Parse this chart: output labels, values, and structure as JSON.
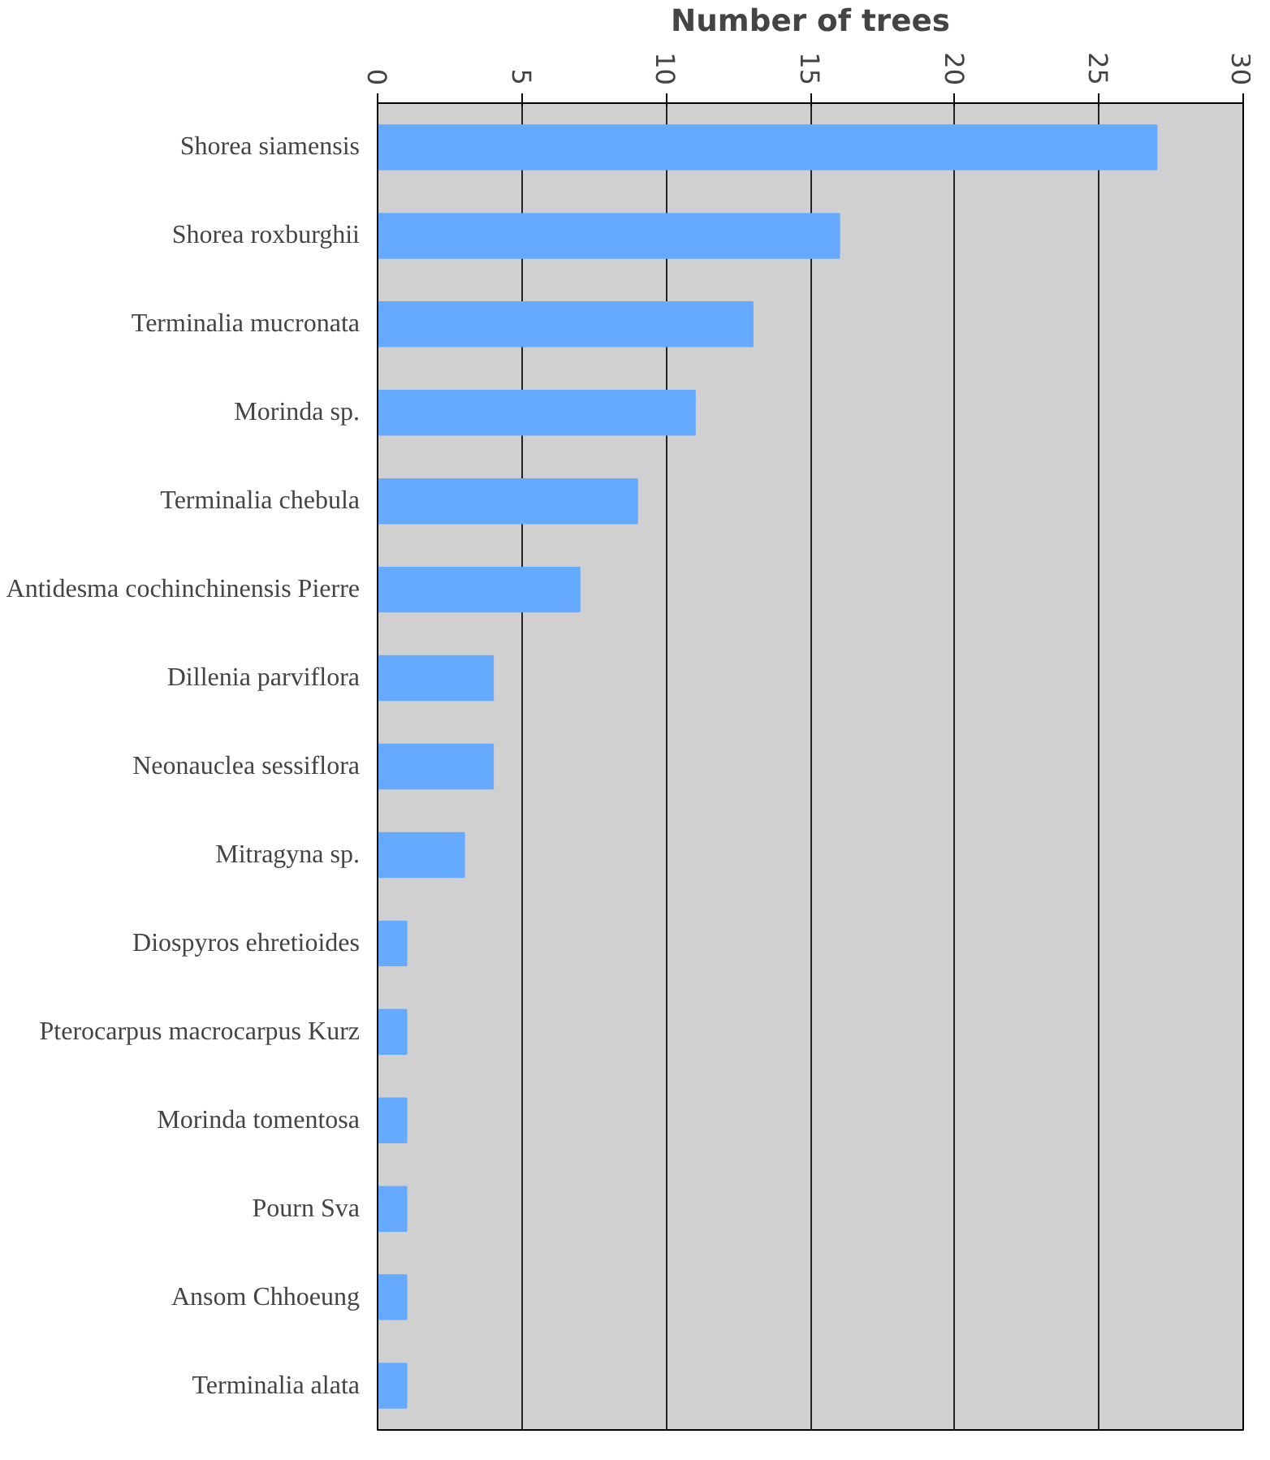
{
  "chart_data": {
    "type": "bar",
    "orientation": "horizontal",
    "xlabel": "Number of trees",
    "categories": [
      "Shorea siamensis",
      "Shorea roxburghii",
      "Terminalia mucronata",
      "Morinda sp.",
      "Terminalia chebula",
      "Antidesma cochinchinensis Pierre",
      "Dillenia parviflora",
      "Neonauclea sessiflora",
      "Mitragyna sp.",
      "Diospyros ehretioides",
      "Pterocarpus macrocarpus Kurz",
      "Morinda tomentosa",
      "Pourn Sva",
      "Ansom Chhoeung",
      "Terminalia alata"
    ],
    "values": [
      27,
      16,
      13,
      11,
      9,
      7,
      4,
      4,
      3,
      1,
      1,
      1,
      1,
      1,
      1
    ],
    "color": "#66aaff",
    "xlim": [
      0,
      30
    ],
    "xticks": [
      0,
      5,
      10,
      15,
      20,
      25,
      30
    ],
    "grid": "x"
  }
}
